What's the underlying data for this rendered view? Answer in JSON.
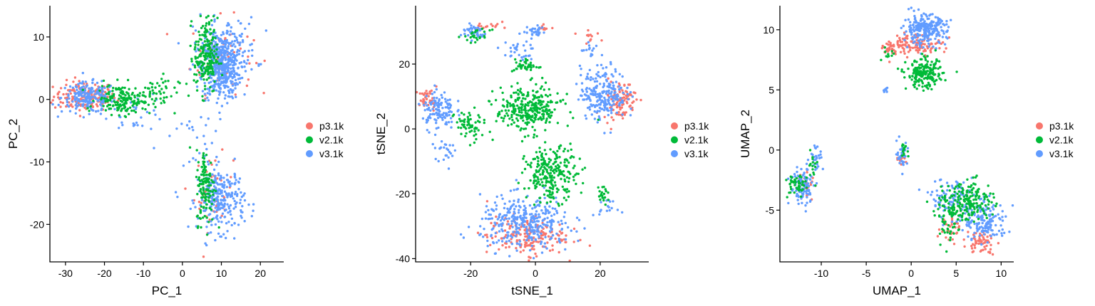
{
  "colors": {
    "p3.1k": "#F8766D",
    "v2.1k": "#00BA38",
    "v3.1k": "#619CFF"
  },
  "chart_data": [
    {
      "type": "scatter",
      "title": "",
      "xlabel": "PC_1",
      "ylabel": "PC_2",
      "xlim": [
        -34,
        26
      ],
      "ylim": [
        -26,
        15
      ],
      "xticks": [
        -30,
        -20,
        -10,
        0,
        10,
        20
      ],
      "yticks": [
        -20,
        -10,
        0,
        10
      ],
      "grid": false,
      "legend": [
        "p3.1k",
        "v2.1k",
        "v3.1k"
      ],
      "legend_position": "right",
      "clusters": [
        {
          "series": "p3.1k",
          "x": -25,
          "y": 0.5,
          "sx": 4,
          "sy": 1.2,
          "n": 170
        },
        {
          "series": "v3.1k",
          "x": -24,
          "y": 0.3,
          "sx": 3.5,
          "sy": 1.2,
          "n": 190
        },
        {
          "series": "v2.1k",
          "x": -15,
          "y": 0,
          "sx": 3.5,
          "sy": 1.2,
          "n": 170
        },
        {
          "series": "v2.1k",
          "x": -7,
          "y": 1,
          "sx": 3,
          "sy": 1.5,
          "n": 40
        },
        {
          "series": "v3.1k",
          "x": -12,
          "y": -2,
          "sx": 4,
          "sy": 1.5,
          "n": 30
        },
        {
          "series": "v2.1k",
          "x": 6,
          "y": 7,
          "sx": 1.5,
          "sy": 3,
          "n": 200
        },
        {
          "series": "v3.1k",
          "x": 10,
          "y": 5,
          "sx": 2.5,
          "sy": 2.5,
          "n": 380
        },
        {
          "series": "v3.1k",
          "x": 11,
          "y": 8,
          "sx": 4,
          "sy": 2.5,
          "n": 150
        },
        {
          "series": "p3.1k",
          "x": 10,
          "y": 7,
          "sx": 4,
          "sy": 3,
          "n": 60
        },
        {
          "series": "v2.1k",
          "x": 6,
          "y": -14,
          "sx": 1.2,
          "sy": 3,
          "n": 130
        },
        {
          "series": "v3.1k",
          "x": 10,
          "y": -16,
          "sx": 3,
          "sy": 2.5,
          "n": 260
        },
        {
          "series": "p3.1k",
          "x": 8,
          "y": -15,
          "sx": 2.5,
          "sy": 3,
          "n": 40
        },
        {
          "series": "v3.1k",
          "x": 3,
          "y": -8,
          "sx": 4,
          "sy": 5,
          "n": 30
        }
      ]
    },
    {
      "type": "scatter",
      "title": "",
      "xlabel": "tSNE_1",
      "ylabel": "tSNE_2",
      "xlim": [
        -37,
        35
      ],
      "ylim": [
        -41,
        38
      ],
      "xticks": [
        -20,
        0,
        20
      ],
      "yticks": [
        -40,
        -20,
        0,
        20
      ],
      "grid": false,
      "legend": [
        "p3.1k",
        "v2.1k",
        "v3.1k"
      ],
      "legend_position": "right",
      "clusters": [
        {
          "series": "v3.1k",
          "x": -19,
          "y": 30,
          "sx": 2,
          "sy": 1.2,
          "n": 45
        },
        {
          "series": "v2.1k",
          "x": -18,
          "y": 28.5,
          "sx": 2,
          "sy": 1,
          "n": 25
        },
        {
          "series": "p3.1k",
          "x": -15,
          "y": 32,
          "sx": 2,
          "sy": 1,
          "n": 15
        },
        {
          "series": "v3.1k",
          "x": 0,
          "y": 30,
          "sx": 1.5,
          "sy": 1,
          "n": 30
        },
        {
          "series": "p3.1k",
          "x": 3,
          "y": 31,
          "sx": 1,
          "sy": 0.5,
          "n": 8
        },
        {
          "series": "p3.1k",
          "x": 17,
          "y": 29,
          "sx": 2,
          "sy": 1,
          "n": 12
        },
        {
          "series": "v3.1k",
          "x": -6,
          "y": 24,
          "sx": 3,
          "sy": 1.5,
          "n": 30
        },
        {
          "series": "v2.1k",
          "x": -3,
          "y": 19.5,
          "sx": 2,
          "sy": 1,
          "n": 40
        },
        {
          "series": "v3.1k",
          "x": 17,
          "y": 24,
          "sx": 1.5,
          "sy": 1.5,
          "n": 15
        },
        {
          "series": "v2.1k",
          "x": -2,
          "y": 6,
          "sx": 5,
          "sy": 3.5,
          "n": 300
        },
        {
          "series": "v3.1k",
          "x": 21,
          "y": 11,
          "sx": 3.5,
          "sy": 4,
          "n": 230
        },
        {
          "series": "p3.1k",
          "x": 26,
          "y": 9,
          "sx": 2.5,
          "sy": 3,
          "n": 100
        },
        {
          "series": "v3.1k",
          "x": -30,
          "y": 6,
          "sx": 2.5,
          "sy": 3,
          "n": 120
        },
        {
          "series": "p3.1k",
          "x": -33,
          "y": 9,
          "sx": 1.5,
          "sy": 1.5,
          "n": 40
        },
        {
          "series": "v2.1k",
          "x": -21,
          "y": 1,
          "sx": 2,
          "sy": 2.5,
          "n": 60
        },
        {
          "series": "v3.1k",
          "x": -28,
          "y": -6,
          "sx": 2,
          "sy": 2,
          "n": 25
        },
        {
          "series": "v2.1k",
          "x": 5,
          "y": -14,
          "sx": 4,
          "sy": 4,
          "n": 240
        },
        {
          "series": "v3.1k",
          "x": -3,
          "y": -29,
          "sx": 7,
          "sy": 4,
          "n": 340
        },
        {
          "series": "p3.1k",
          "x": -3,
          "y": -33,
          "sx": 6,
          "sy": 3,
          "n": 180
        },
        {
          "series": "v2.1k",
          "x": 21,
          "y": -20,
          "sx": 1,
          "sy": 1.5,
          "n": 20
        },
        {
          "series": "v3.1k",
          "x": 22,
          "y": -24,
          "sx": 1.5,
          "sy": 1,
          "n": 15
        }
      ]
    },
    {
      "type": "scatter",
      "title": "",
      "xlabel": "UMAP_1",
      "ylabel": "UMAP_2",
      "xlim": [
        -14.6,
        11.4
      ],
      "ylim": [
        -9.3,
        12
      ],
      "xticks": [
        -10,
        -5,
        0,
        5,
        10
      ],
      "yticks": [
        -5,
        0,
        5,
        10
      ],
      "grid": false,
      "legend": [
        "p3.1k",
        "v2.1k",
        "v3.1k"
      ],
      "legend_position": "right",
      "clusters": [
        {
          "series": "v3.1k",
          "x": 1.5,
          "y": 10,
          "sx": 1.2,
          "sy": 0.6,
          "n": 250
        },
        {
          "series": "p3.1k",
          "x": 0.5,
          "y": 8.8,
          "sx": 1.5,
          "sy": 0.4,
          "n": 120
        },
        {
          "series": "p3.1k",
          "x": -2.5,
          "y": 8.5,
          "sx": 0.4,
          "sy": 0.4,
          "n": 25
        },
        {
          "series": "v2.1k",
          "x": 1.5,
          "y": 6.3,
          "sx": 1,
          "sy": 0.6,
          "n": 190
        },
        {
          "series": "v2.1k",
          "x": -2.5,
          "y": 8,
          "sx": 0.4,
          "sy": 0.3,
          "n": 10
        },
        {
          "series": "v3.1k",
          "x": -2.9,
          "y": 5,
          "sx": 0.15,
          "sy": 0.1,
          "n": 8
        },
        {
          "series": "v3.1k",
          "x": -12,
          "y": -3,
          "sx": 0.7,
          "sy": 0.8,
          "n": 100
        },
        {
          "series": "v2.1k",
          "x": -12.8,
          "y": -3,
          "sx": 0.6,
          "sy": 0.5,
          "n": 50
        },
        {
          "series": "p3.1k",
          "x": -11.6,
          "y": -2.8,
          "sx": 0.5,
          "sy": 0.6,
          "n": 25
        },
        {
          "series": "v3.1k",
          "x": -10.6,
          "y": -0.5,
          "sx": 0.4,
          "sy": 0.6,
          "n": 25
        },
        {
          "series": "v2.1k",
          "x": -11,
          "y": -1.2,
          "sx": 0.3,
          "sy": 0.5,
          "n": 15
        },
        {
          "series": "v3.1k",
          "x": -1,
          "y": -0.3,
          "sx": 0.3,
          "sy": 0.5,
          "n": 35
        },
        {
          "series": "v2.1k",
          "x": -0.8,
          "y": 0.1,
          "sx": 0.2,
          "sy": 0.3,
          "n": 15
        },
        {
          "series": "p3.1k",
          "x": -1.2,
          "y": -1,
          "sx": 0.3,
          "sy": 0.2,
          "n": 10
        },
        {
          "series": "v3.1k",
          "x": 8.3,
          "y": -6,
          "sx": 1.2,
          "sy": 0.8,
          "n": 150
        },
        {
          "series": "p3.1k",
          "x": 7.8,
          "y": -7.6,
          "sx": 0.8,
          "sy": 0.5,
          "n": 60
        },
        {
          "series": "v2.1k",
          "x": 6.8,
          "y": -4.2,
          "sx": 1.2,
          "sy": 0.8,
          "n": 160
        },
        {
          "series": "v2.1k",
          "x": 4.2,
          "y": -5.5,
          "sx": 0.8,
          "sy": 1,
          "n": 80
        },
        {
          "series": "v3.1k",
          "x": 4.5,
          "y": -4,
          "sx": 1.2,
          "sy": 0.8,
          "n": 100
        },
        {
          "series": "p3.1k",
          "x": 4.2,
          "y": -6.5,
          "sx": 0.6,
          "sy": 0.6,
          "n": 30
        }
      ]
    }
  ]
}
